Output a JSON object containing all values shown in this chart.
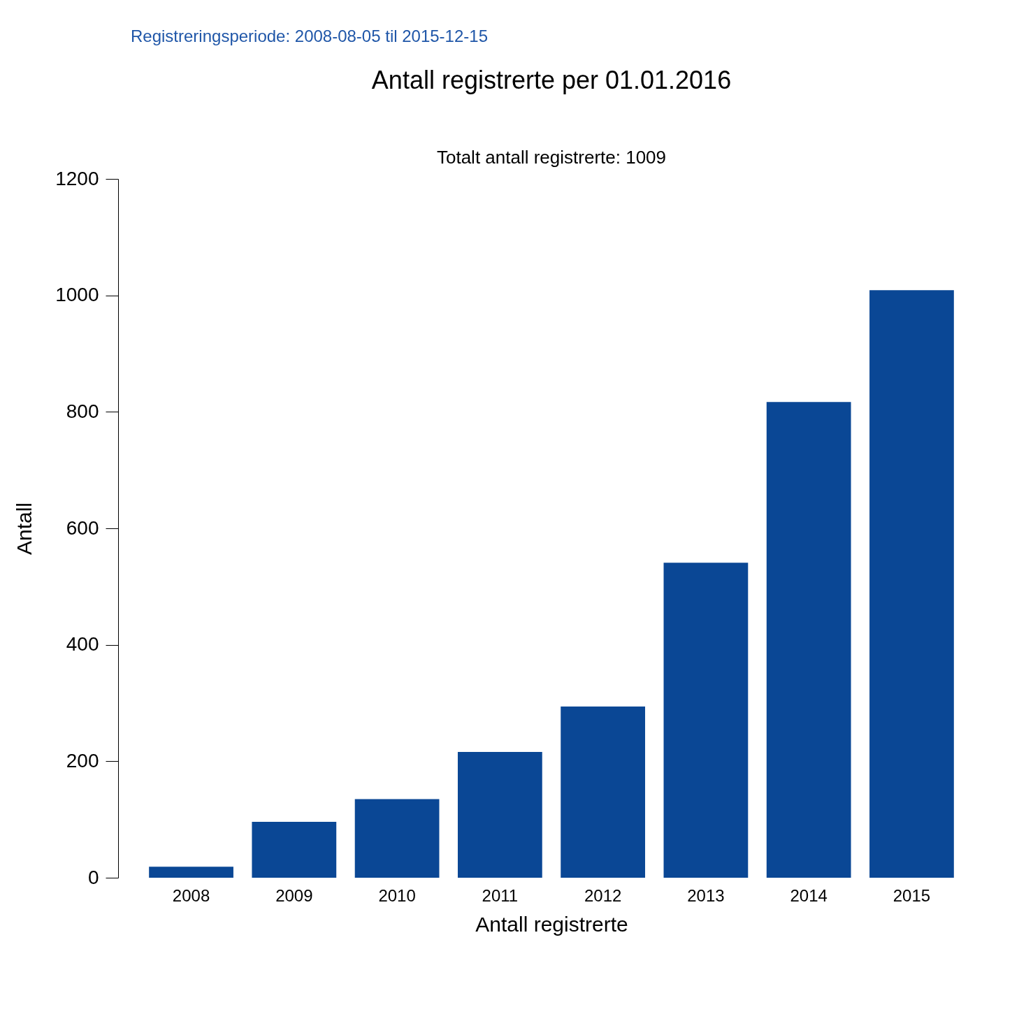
{
  "chart_data": {
    "type": "bar",
    "title": "Antall registrerte per 01.01.2016",
    "subtitle": "Totalt antall registrerte: 1009",
    "xlabel": "Antall registrerte",
    "ylabel": "Antall",
    "annotations": [
      "Registreringsperiode: 2008-08-05 til 2015-12-15"
    ],
    "categories": [
      "2008",
      "2009",
      "2010",
      "2011",
      "2012",
      "2013",
      "2014",
      "2015"
    ],
    "values": [
      19,
      96,
      135,
      216,
      294,
      541,
      817,
      1009
    ],
    "color": "#0a4795",
    "ylim": [
      0,
      1200
    ],
    "yticks": [
      0,
      200,
      400,
      600,
      800,
      1000,
      1200
    ],
    "grid": false
  }
}
